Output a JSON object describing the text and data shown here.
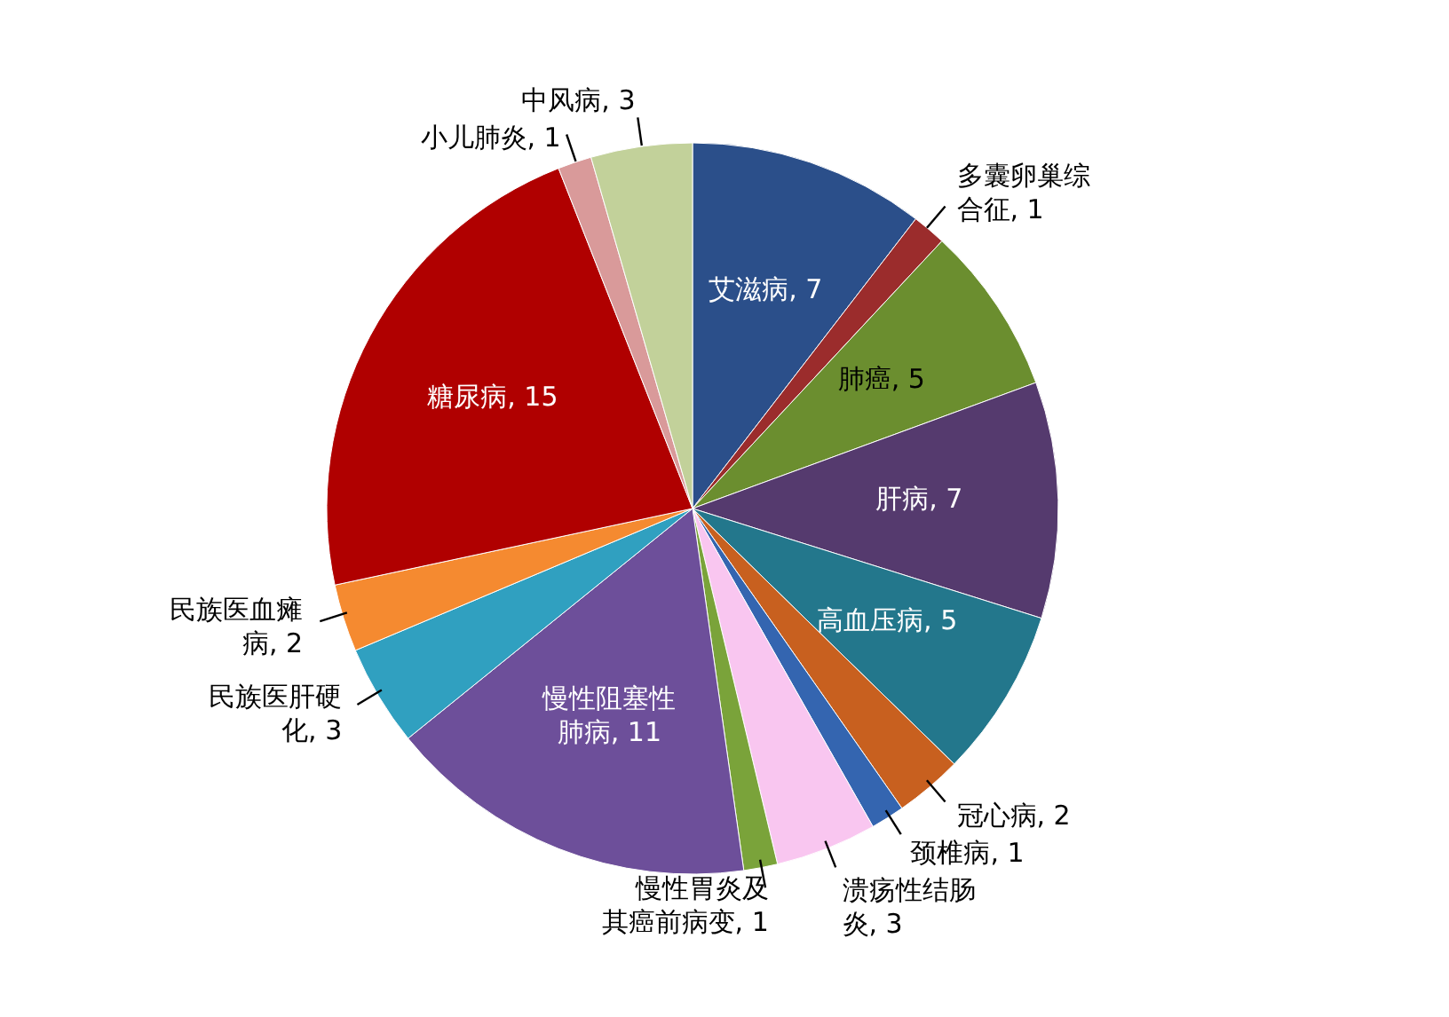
{
  "chart_data": {
    "type": "pie",
    "categories": [
      "艾滋病",
      "多囊卵巢综合征",
      "肺癌",
      "肝病",
      "高血压病",
      "冠心病",
      "颈椎病",
      "溃疡性结肠炎",
      "慢性胃炎及其癌前病变",
      "慢性阻塞性肺病",
      "民族医肝硬化",
      "民族医血瘫病",
      "糖尿病",
      "小儿肺炎",
      "中风病"
    ],
    "values": [
      7,
      1,
      5,
      7,
      5,
      2,
      1,
      3,
      1,
      11,
      3,
      2,
      15,
      1,
      3
    ],
    "colors": [
      "#2b4f8a",
      "#9b2c2c",
      "#6b8e2f",
      "#553a6e",
      "#23778c",
      "#c8601f",
      "#3465b0",
      "#f9c6f0",
      "#7aa33a",
      "#6d4f9a",
      "#30a0c0",
      "#f58a30",
      "#b00000",
      "#d99a9a",
      "#c2d19a"
    ],
    "value_labels": [
      ", 7",
      ", 1",
      ", 5",
      ", 7",
      ", 5",
      ", 2",
      ", 1",
      ", 3",
      ", 1",
      ", 11",
      ", 3",
      ", 2",
      ", 15",
      ", 1",
      ", 3"
    ]
  }
}
